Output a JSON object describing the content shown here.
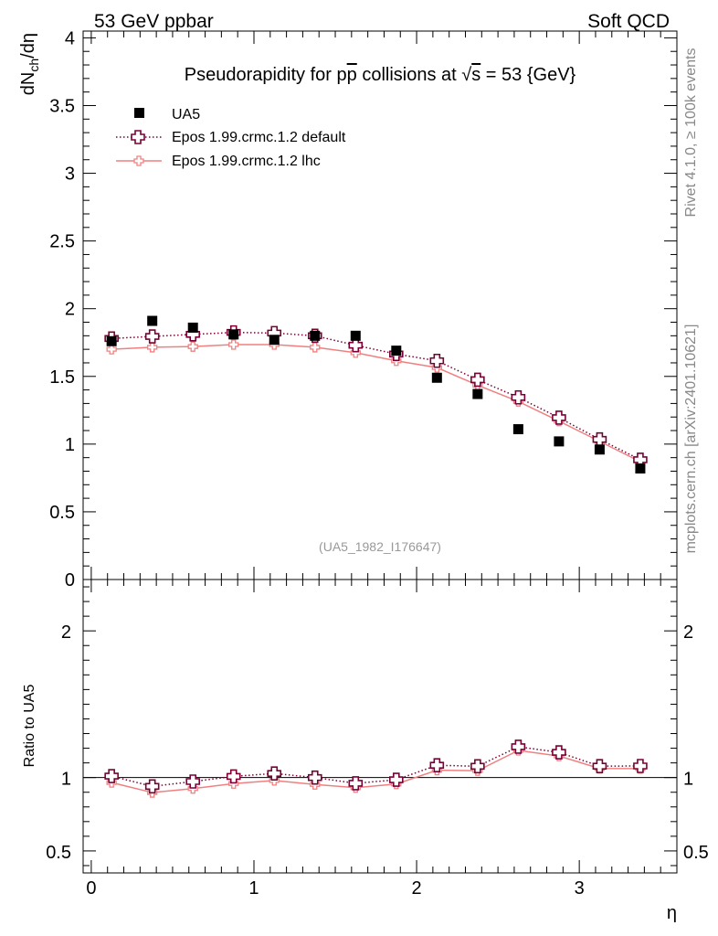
{
  "header": {
    "left": "53 GeV ppbar",
    "right": "Soft QCD"
  },
  "side_text": {
    "rivet": "Rivet 4.1.0, ≥ 100k events",
    "mcplots": "mcplots.cern.ch [arXiv:2401.10621]"
  },
  "colors": {
    "data": "#000000",
    "default": "#7a0033",
    "lhc": "#f08080"
  },
  "chart_data": [
    {
      "type": "scatter",
      "panel": "main",
      "title": "Pseudorapidity for p̅p collisions at √s = 53 {GeV}",
      "title_parts": {
        "pre": "Pseudorapidity for p",
        "pbar": "p",
        "mid": " collisions at ",
        "sqrt": "s",
        "post": " = 53 {GeV}"
      },
      "ylabel": "dN_ch/dη",
      "ylabel_parts": {
        "main": "dN",
        "sub": "ch",
        "rest": "/dη"
      },
      "xlabel": "η",
      "xlim": [
        -0.05,
        3.6
      ],
      "ylim": [
        0,
        4.05
      ],
      "yticks": [
        "0",
        "0.5",
        "1",
        "1.5",
        "2",
        "2.5",
        "3",
        "3.5",
        "4"
      ],
      "ytick_values": [
        0,
        0.5,
        1,
        1.5,
        2,
        2.5,
        3,
        3.5,
        4
      ],
      "annotation": "(UA5_1982_I176647)",
      "legend_position": "top-left",
      "x": [
        0.125,
        0.375,
        0.625,
        0.875,
        1.125,
        1.375,
        1.625,
        1.875,
        2.125,
        2.375,
        2.625,
        2.875,
        3.125,
        3.375
      ],
      "series": [
        {
          "name": "UA5",
          "style": "markers",
          "values": [
            1.76,
            1.91,
            1.86,
            1.81,
            1.77,
            1.8,
            1.8,
            1.69,
            1.49,
            1.37,
            1.11,
            1.02,
            0.96,
            0.82
          ]
        },
        {
          "name": "Epos 1.99.crmc.1.2 default",
          "style": "dotted-cross",
          "values": [
            1.78,
            1.795,
            1.81,
            1.825,
            1.82,
            1.8,
            1.73,
            1.665,
            1.615,
            1.475,
            1.345,
            1.195,
            1.035,
            0.885
          ]
        },
        {
          "name": "Epos 1.99.crmc.1.2 lhc",
          "style": "solid-small",
          "values": [
            1.7,
            1.715,
            1.72,
            1.735,
            1.735,
            1.715,
            1.675,
            1.615,
            1.565,
            1.435,
            1.315,
            1.17,
            1.02,
            0.87
          ]
        }
      ]
    },
    {
      "type": "line",
      "panel": "ratio",
      "ylabel": "Ratio to UA5",
      "xlabel": "η",
      "xlim": [
        -0.05,
        3.6
      ],
      "ylim": [
        0.35,
        2.35
      ],
      "yticks": [
        "0.5",
        "1",
        "2"
      ],
      "ytick_values": [
        0.5,
        1,
        2
      ],
      "xticks": [
        "0",
        "1",
        "2",
        "3"
      ],
      "xtick_values": [
        0,
        1,
        2,
        3
      ],
      "x": [
        0.125,
        0.375,
        0.625,
        0.875,
        1.125,
        1.375,
        1.625,
        1.875,
        2.125,
        2.375,
        2.625,
        2.875,
        3.125,
        3.375
      ],
      "series": [
        {
          "name": "Epos 1.99.crmc.1.2 default",
          "values": [
            1.01,
            0.94,
            0.973,
            1.008,
            1.028,
            1.0,
            0.961,
            0.985,
            1.084,
            1.077,
            1.21,
            1.172,
            1.078,
            1.079
          ]
        },
        {
          "name": "Epos 1.99.crmc.1.2 lhc",
          "values": [
            0.966,
            0.898,
            0.925,
            0.959,
            0.98,
            0.953,
            0.931,
            0.956,
            1.05,
            1.047,
            1.185,
            1.147,
            1.062,
            1.061
          ]
        }
      ]
    }
  ]
}
